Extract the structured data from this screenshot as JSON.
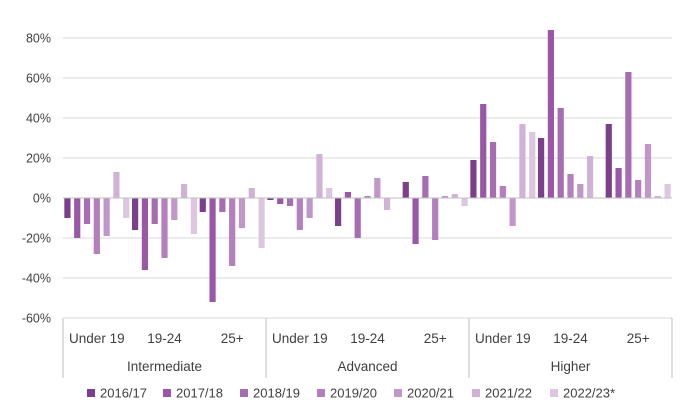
{
  "chart_data": {
    "type": "bar",
    "title": "",
    "xlabel": "",
    "ylabel": "",
    "ylim": [
      -60,
      80
    ],
    "yticks": [
      -60,
      -40,
      -20,
      0,
      20,
      40,
      60,
      80
    ],
    "ytick_labels": [
      "-60%",
      "-40%",
      "-20%",
      "0%",
      "20%",
      "40%",
      "60%",
      "80%"
    ],
    "grid": "horizontal",
    "legend_position": "bottom",
    "categories": [
      "Under 19",
      "19-24",
      "25+",
      "Under 19",
      "19-24",
      "25+",
      "Under 19",
      "19-24",
      "25+"
    ],
    "groups": [
      {
        "label": "Intermediate",
        "categories": [
          "Under 19",
          "19-24",
          "25+"
        ]
      },
      {
        "label": "Advanced",
        "categories": [
          "Under 19",
          "19-24",
          "25+"
        ]
      },
      {
        "label": "Higher",
        "categories": [
          "Under 19",
          "19-24",
          "25+"
        ]
      }
    ],
    "series": [
      {
        "name": "2016/17",
        "color": "#7b3f8c",
        "values": [
          -10,
          -16,
          -7,
          -1,
          -14,
          8,
          19,
          30,
          37
        ]
      },
      {
        "name": "2017/18",
        "color": "#9a57a8",
        "values": [
          -20,
          -36,
          -52,
          -3,
          3,
          -23,
          47,
          84,
          15
        ]
      },
      {
        "name": "2018/19",
        "color": "#a76db3",
        "values": [
          -13,
          -13,
          -7,
          -4,
          -20,
          11,
          28,
          45,
          63
        ]
      },
      {
        "name": "2019/20",
        "color": "#b47fbd",
        "values": [
          -28,
          -30,
          -34,
          -16,
          1,
          -21,
          6,
          12,
          9
        ]
      },
      {
        "name": "2020/21",
        "color": "#c097c8",
        "values": [
          -19,
          -11,
          -15,
          -10,
          10,
          1,
          -14,
          7,
          27
        ]
      },
      {
        "name": "2021/22",
        "color": "#d0b2d6",
        "values": [
          13,
          7,
          5,
          22,
          -6,
          2,
          37,
          21,
          1
        ]
      },
      {
        "name": "2022/23*",
        "color": "#dcc6e0",
        "values": [
          -10,
          -18,
          -25,
          5,
          0,
          -4,
          33,
          0,
          7
        ]
      }
    ]
  }
}
